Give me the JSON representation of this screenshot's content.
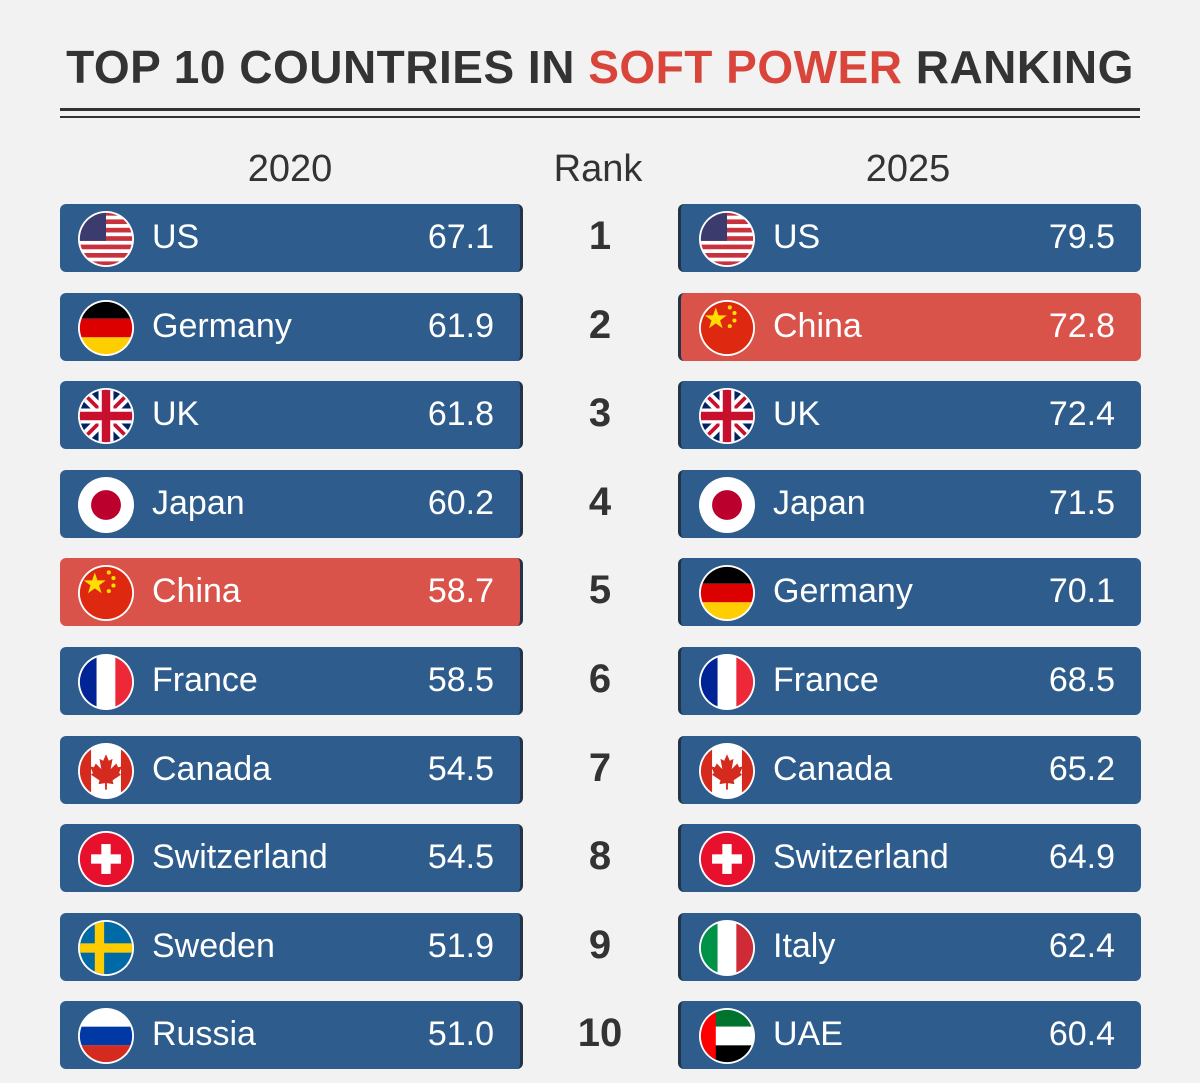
{
  "title": {
    "before": "TOP 10 COUNTRIES IN",
    "highlight": "SOFT POWER",
    "after": "RANKING"
  },
  "columns": {
    "left": "2020",
    "rank": "Rank",
    "right": "2025"
  },
  "ranks": [
    1,
    2,
    3,
    4,
    5,
    6,
    7,
    8,
    9,
    10
  ],
  "left": [
    {
      "country": "US",
      "score": "67.1"
    },
    {
      "country": "Germany",
      "score": "61.9"
    },
    {
      "country": "UK",
      "score": "61.8"
    },
    {
      "country": "Japan",
      "score": "60.2"
    },
    {
      "country": "China",
      "score": "58.7"
    },
    {
      "country": "France",
      "score": "58.5"
    },
    {
      "country": "Canada",
      "score": "54.5"
    },
    {
      "country": "Switzerland",
      "score": "54.5"
    },
    {
      "country": "Sweden",
      "score": "51.9"
    },
    {
      "country": "Russia",
      "score": "51.0"
    }
  ],
  "right": [
    {
      "country": "US",
      "score": "79.5"
    },
    {
      "country": "China",
      "score": "72.8"
    },
    {
      "country": "UK",
      "score": "72.4"
    },
    {
      "country": "Japan",
      "score": "71.5"
    },
    {
      "country": "Germany",
      "score": "70.1"
    },
    {
      "country": "France",
      "score": "68.5"
    },
    {
      "country": "Canada",
      "score": "65.2"
    },
    {
      "country": "Switzerland",
      "score": "64.9"
    },
    {
      "country": "Italy",
      "score": "62.4"
    },
    {
      "country": "UAE",
      "score": "60.4"
    }
  ]
}
